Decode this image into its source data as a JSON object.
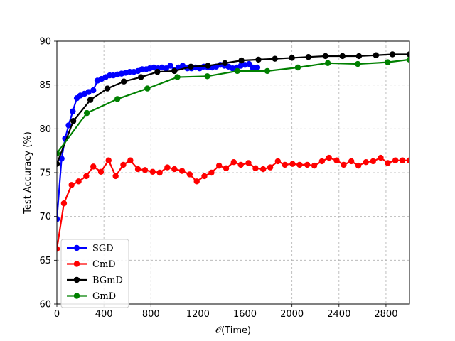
{
  "chart_data": {
    "type": "line",
    "xlabel": "𝒪(Time)",
    "ylabel": "Test Accuracy (%)",
    "xlim": [
      0,
      3000
    ],
    "ylim": [
      60,
      90
    ],
    "xticks": [
      0,
      400,
      800,
      1200,
      1600,
      2000,
      2400,
      2800
    ],
    "yticks": [
      60,
      65,
      70,
      75,
      80,
      85,
      90
    ],
    "grid": true,
    "legend_position": "lower-left",
    "series": [
      {
        "name": "SGD",
        "color": "#0000ff",
        "x": [
          0,
          40,
          70,
          100,
          135,
          170,
          200,
          235,
          270,
          310,
          345,
          380,
          415,
          450,
          480,
          515,
          550,
          585,
          620,
          655,
          690,
          725,
          760,
          790,
          825,
          860,
          895,
          930,
          965,
          1000,
          1035,
          1070,
          1110,
          1145,
          1180,
          1215,
          1250,
          1285,
          1320,
          1355,
          1390,
          1425,
          1460,
          1495,
          1530,
          1565,
          1600,
          1635,
          1665,
          1705
        ],
        "values": [
          69.7,
          76.6,
          78.9,
          80.4,
          82.0,
          83.5,
          83.8,
          84.0,
          84.2,
          84.4,
          85.5,
          85.7,
          85.9,
          86.1,
          86.1,
          86.2,
          86.3,
          86.4,
          86.5,
          86.5,
          86.6,
          86.8,
          86.8,
          86.9,
          87.0,
          86.9,
          87.0,
          86.9,
          87.2,
          86.7,
          87.0,
          87.2,
          86.9,
          86.9,
          87.0,
          86.9,
          87.1,
          87.0,
          87.0,
          87.1,
          87.3,
          87.2,
          87.1,
          86.9,
          87.0,
          87.2,
          87.3,
          87.4,
          87.0,
          87.0
        ]
      },
      {
        "name": "CmD",
        "color": "#ff0000",
        "x": [
          0,
          60,
          125,
          185,
          250,
          310,
          375,
          440,
          500,
          565,
          625,
          690,
          750,
          815,
          875,
          940,
          1000,
          1065,
          1130,
          1190,
          1255,
          1315,
          1380,
          1440,
          1505,
          1565,
          1630,
          1690,
          1755,
          1815,
          1880,
          1940,
          2005,
          2065,
          2130,
          2190,
          2255,
          2315,
          2380,
          2440,
          2505,
          2565,
          2630,
          2690,
          2755,
          2815,
          2880,
          2940,
          3000
        ],
        "values": [
          66.3,
          71.5,
          73.6,
          74.0,
          74.6,
          75.7,
          75.1,
          76.4,
          74.6,
          75.9,
          76.4,
          75.4,
          75.3,
          75.1,
          75.0,
          75.6,
          75.4,
          75.2,
          74.8,
          74.0,
          74.6,
          75.0,
          75.8,
          75.5,
          76.2,
          75.9,
          76.1,
          75.5,
          75.4,
          75.6,
          76.3,
          75.9,
          76.0,
          75.9,
          75.9,
          75.8,
          76.3,
          76.7,
          76.4,
          75.9,
          76.3,
          75.8,
          76.2,
          76.3,
          76.7,
          76.1,
          76.4,
          76.4,
          76.4
        ]
      },
      {
        "name": "BGmD",
        "color": "#000000",
        "x": [
          0,
          140,
          285,
          430,
          570,
          715,
          855,
          1000,
          1140,
          1285,
          1430,
          1570,
          1715,
          1855,
          2000,
          2140,
          2285,
          2430,
          2570,
          2715,
          2855,
          3000
        ],
        "values": [
          76.0,
          80.9,
          83.3,
          84.6,
          85.4,
          85.9,
          86.5,
          86.6,
          87.1,
          87.2,
          87.5,
          87.8,
          87.9,
          88.0,
          88.1,
          88.2,
          88.3,
          88.3,
          88.3,
          88.4,
          88.5,
          88.5
        ]
      },
      {
        "name": "GmD",
        "color": "#008000",
        "x": [
          0,
          255,
          515,
          770,
          1025,
          1280,
          1535,
          1790,
          2050,
          2305,
          2560,
          2815,
          3000
        ],
        "values": [
          77.2,
          81.8,
          83.4,
          84.6,
          85.9,
          86.0,
          86.6,
          86.6,
          87.0,
          87.5,
          87.4,
          87.6,
          87.9
        ]
      }
    ]
  }
}
